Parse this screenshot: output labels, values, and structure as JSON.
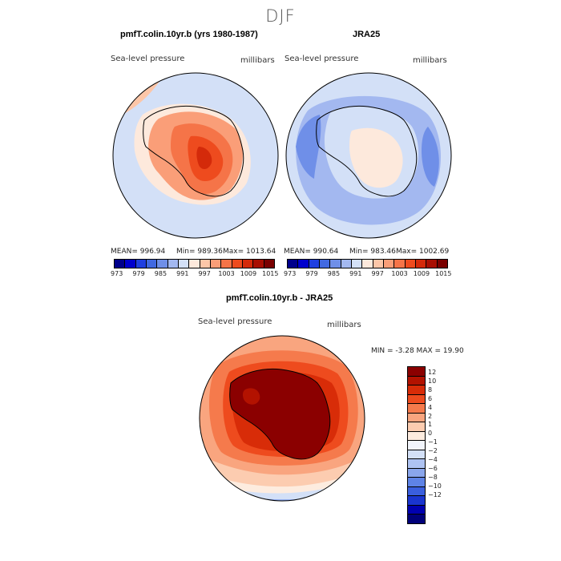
{
  "figure": {
    "season": "DJF"
  },
  "panels": [
    {
      "title": "pmfT.colin.10yr.b (yrs 1980-1987)",
      "variable": "Sea-level pressure",
      "units": "millibars",
      "stats": {
        "mean": "MEAN= 996.94",
        "min": "Min= 989.36",
        "max": "Max= 1013.64"
      }
    },
    {
      "title": "JRA25",
      "variable": "Sea-level pressure",
      "units": "millibars",
      "stats": {
        "mean": "MEAN= 990.64",
        "min": "Min= 983.46",
        "max": "Max= 1002.69"
      }
    }
  ],
  "diff_panel": {
    "title": "pmfT.colin.10yr.b - JRA25",
    "variable": "Sea-level pressure",
    "units": "millibars",
    "minmax": "MIN =   -3.28 MAX =   19.90"
  },
  "colorbar_abs": {
    "colors": [
      "#00008b",
      "#0000cd",
      "#1f3fe0",
      "#4169e1",
      "#6f8fe8",
      "#a3b8f0",
      "#d3e0f7",
      "#fde9dc",
      "#fcc6a8",
      "#fa9e78",
      "#f57448",
      "#ee4b1e",
      "#d42a0a",
      "#a80e02",
      "#7a0000"
    ],
    "ticks": [
      "973",
      "979",
      "985",
      "991",
      "997",
      "1003",
      "1009",
      "1015"
    ]
  },
  "colorbar_diff": {
    "colors": [
      "#8b0000",
      "#b31200",
      "#d82c08",
      "#ee4b1e",
      "#f57a4c",
      "#f9a57f",
      "#fcccb0",
      "#fdecdf",
      "#f2f5fc",
      "#d3e0f7",
      "#aec3f2",
      "#8aa6ec",
      "#5e83e6",
      "#3a5fde",
      "#1a35cf",
      "#0000b0",
      "#00007a"
    ],
    "ticks": [
      "12",
      "10",
      "8",
      "6",
      "4",
      "2",
      "1",
      "0",
      "−1",
      "−2",
      "−4",
      "−6",
      "−8",
      "−10",
      "−12"
    ]
  }
}
